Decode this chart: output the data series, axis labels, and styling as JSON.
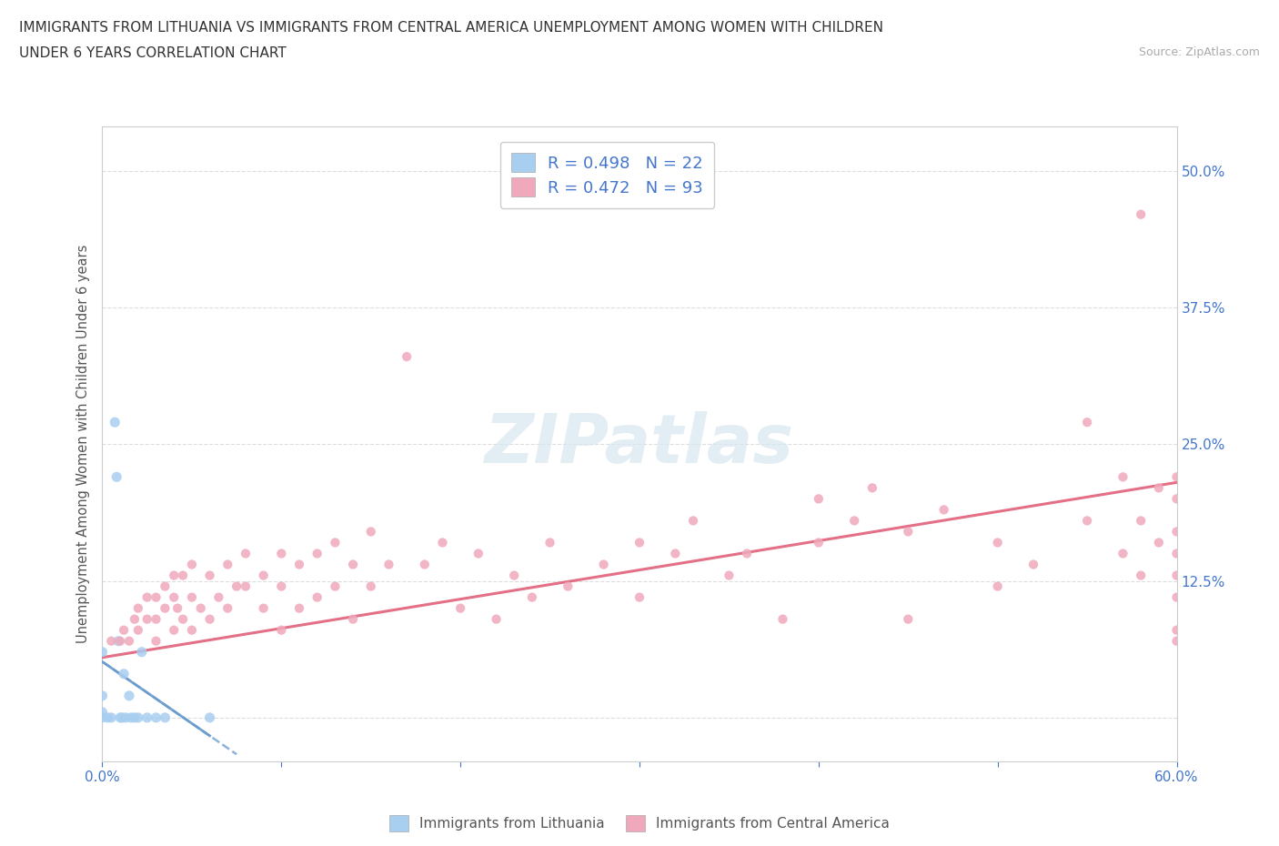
{
  "title_line1": "IMMIGRANTS FROM LITHUANIA VS IMMIGRANTS FROM CENTRAL AMERICA UNEMPLOYMENT AMONG WOMEN WITH CHILDREN",
  "title_line2": "UNDER 6 YEARS CORRELATION CHART",
  "source": "Source: ZipAtlas.com",
  "ylabel": "Unemployment Among Women with Children Under 6 years",
  "xlim": [
    0.0,
    0.6
  ],
  "ylim": [
    -0.04,
    0.54
  ],
  "ytick_vals": [
    0.0,
    0.125,
    0.25,
    0.375,
    0.5
  ],
  "ytick_labels": [
    "",
    "12.5%",
    "25.0%",
    "37.5%",
    "50.0%"
  ],
  "xtick_vals": [
    0.0,
    0.1,
    0.2,
    0.3,
    0.4,
    0.5,
    0.6
  ],
  "xtick_labels": [
    "0.0%",
    "",
    "",
    "",
    "",
    "",
    "60.0%"
  ],
  "r_lithuania": 0.498,
  "n_lithuania": 22,
  "r_central": 0.472,
  "n_central": 93,
  "color_lithuania": "#a8cef0",
  "color_central": "#f0a8bc",
  "trendline_lithuania_color": "#6699cc",
  "trendline_central_color": "#e0607a",
  "tick_color": "#4477cc",
  "watermark": "ZIPatlas",
  "lith_x": [
    0.0,
    0.0,
    0.0,
    0.0,
    0.003,
    0.005,
    0.007,
    0.008,
    0.009,
    0.01,
    0.011,
    0.012,
    0.013,
    0.015,
    0.016,
    0.018,
    0.02,
    0.022,
    0.025,
    0.03,
    0.035,
    0.06
  ],
  "lith_y": [
    0.0,
    0.005,
    0.02,
    0.06,
    0.0,
    0.0,
    0.27,
    0.22,
    0.07,
    0.0,
    0.0,
    0.04,
    0.0,
    0.02,
    0.0,
    0.0,
    0.0,
    0.06,
    0.0,
    0.0,
    0.0,
    0.0
  ],
  "ca_x": [
    0.005,
    0.01,
    0.012,
    0.015,
    0.018,
    0.02,
    0.02,
    0.025,
    0.025,
    0.03,
    0.03,
    0.03,
    0.035,
    0.035,
    0.04,
    0.04,
    0.04,
    0.042,
    0.045,
    0.045,
    0.05,
    0.05,
    0.05,
    0.055,
    0.06,
    0.06,
    0.065,
    0.07,
    0.07,
    0.075,
    0.08,
    0.08,
    0.09,
    0.09,
    0.1,
    0.1,
    0.1,
    0.11,
    0.11,
    0.12,
    0.12,
    0.13,
    0.13,
    0.14,
    0.14,
    0.15,
    0.15,
    0.16,
    0.17,
    0.18,
    0.19,
    0.2,
    0.21,
    0.22,
    0.23,
    0.24,
    0.25,
    0.26,
    0.28,
    0.3,
    0.3,
    0.32,
    0.33,
    0.35,
    0.36,
    0.38,
    0.4,
    0.4,
    0.42,
    0.43,
    0.45,
    0.45,
    0.47,
    0.5,
    0.5,
    0.52,
    0.55,
    0.55,
    0.57,
    0.57,
    0.58,
    0.58,
    0.58,
    0.59,
    0.59,
    0.6,
    0.6,
    0.6,
    0.6,
    0.6,
    0.6,
    0.6,
    0.6
  ],
  "ca_y": [
    0.07,
    0.07,
    0.08,
    0.07,
    0.09,
    0.08,
    0.1,
    0.09,
    0.11,
    0.07,
    0.09,
    0.11,
    0.1,
    0.12,
    0.08,
    0.11,
    0.13,
    0.1,
    0.09,
    0.13,
    0.08,
    0.11,
    0.14,
    0.1,
    0.09,
    0.13,
    0.11,
    0.1,
    0.14,
    0.12,
    0.12,
    0.15,
    0.1,
    0.13,
    0.08,
    0.12,
    0.15,
    0.1,
    0.14,
    0.11,
    0.15,
    0.12,
    0.16,
    0.09,
    0.14,
    0.12,
    0.17,
    0.14,
    0.33,
    0.14,
    0.16,
    0.1,
    0.15,
    0.09,
    0.13,
    0.11,
    0.16,
    0.12,
    0.14,
    0.16,
    0.11,
    0.15,
    0.18,
    0.13,
    0.15,
    0.09,
    0.2,
    0.16,
    0.18,
    0.21,
    0.09,
    0.17,
    0.19,
    0.12,
    0.16,
    0.14,
    0.27,
    0.18,
    0.22,
    0.15,
    0.46,
    0.18,
    0.13,
    0.21,
    0.16,
    0.22,
    0.07,
    0.13,
    0.17,
    0.11,
    0.08,
    0.2,
    0.15
  ],
  "lith_trend_x": [
    -0.005,
    0.075
  ],
  "lith_trend_y_start_offset": 0.0,
  "ca_trend_x": [
    0.0,
    0.6
  ],
  "ca_trend_y": [
    0.055,
    0.215
  ]
}
